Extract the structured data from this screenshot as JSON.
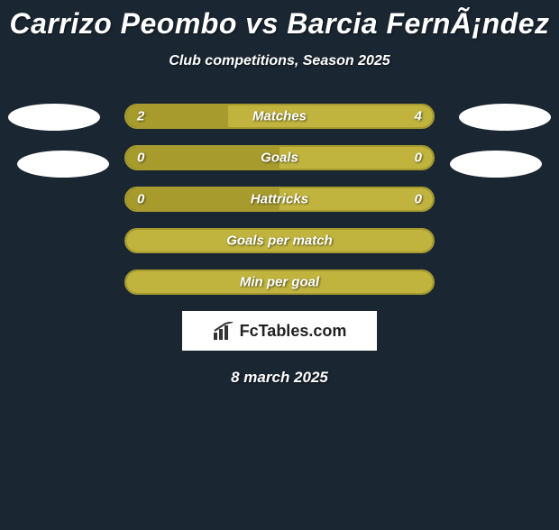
{
  "background_color": "#1a2632",
  "title": "Carrizo Peombo vs Barcia FernÃ¡ndez",
  "title_fontsize": 32,
  "subtitle": "Club competitions, Season 2025",
  "subtitle_fontsize": 16,
  "player_ovals": {
    "color": "#ffffff",
    "left_count": 2,
    "right_count": 2
  },
  "bars": [
    {
      "label": "Matches",
      "left_value": "2",
      "right_value": "4",
      "left_share": 0.333,
      "show_values": true,
      "left_color": "#a79b2e",
      "right_color": "#c0b43f",
      "border_color": "#a79b2e"
    },
    {
      "label": "Goals",
      "left_value": "0",
      "right_value": "0",
      "left_share": 0.5,
      "show_values": true,
      "left_color": "#a79b2e",
      "right_color": "#c0b43f",
      "border_color": "#a79b2e"
    },
    {
      "label": "Hattricks",
      "left_value": "0",
      "right_value": "0",
      "left_share": 0.5,
      "show_values": true,
      "left_color": "#a79b2e",
      "right_color": "#c0b43f",
      "border_color": "#a79b2e"
    },
    {
      "label": "Goals per match",
      "left_value": "",
      "right_value": "",
      "left_share": 0,
      "show_values": false,
      "left_color": "#a79b2e",
      "right_color": "#c0b43f",
      "border_color": "#a79b2e"
    },
    {
      "label": "Min per goal",
      "left_value": "",
      "right_value": "",
      "left_share": 0,
      "show_values": false,
      "left_color": "#a79b2e",
      "right_color": "#c0b43f",
      "border_color": "#a79b2e"
    }
  ],
  "logo": {
    "text": "FcTables.com",
    "icon_color": "#333333",
    "bg_color": "#ffffff"
  },
  "date": "8 march 2025",
  "text_color": "#ffffff"
}
